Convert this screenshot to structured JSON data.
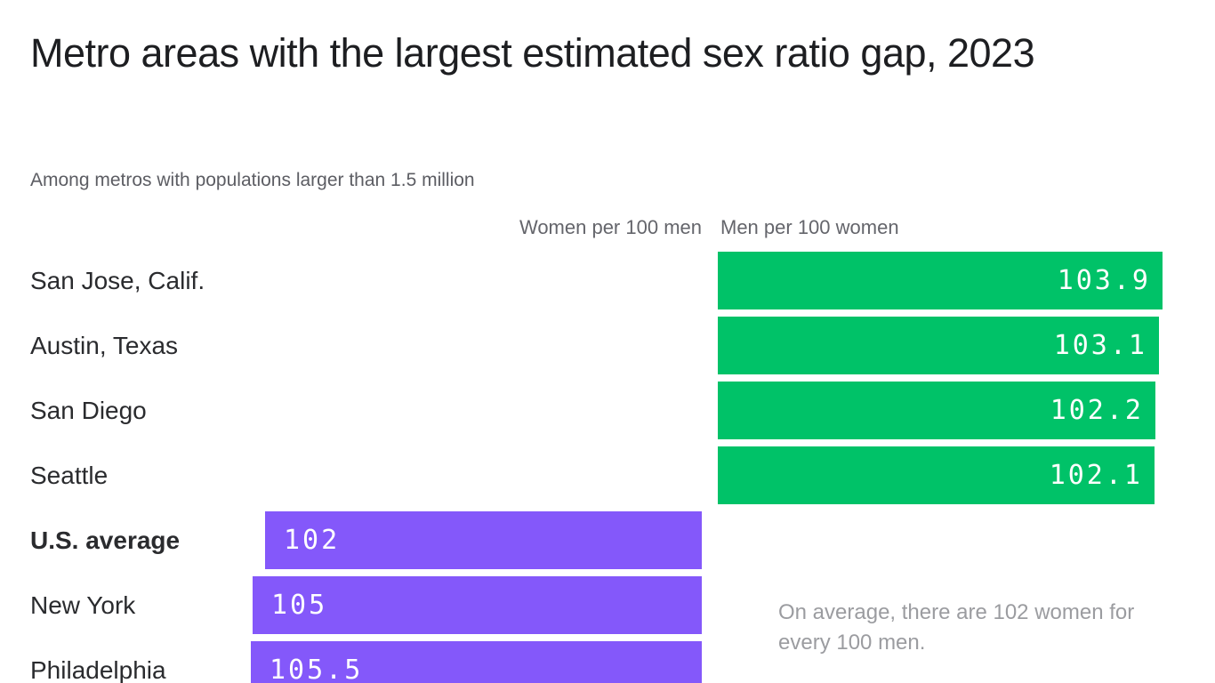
{
  "header": {
    "title": "Metro areas with the largest estimated sex ratio gap, 2023",
    "subtitle": "Among metros with populations larger than 1.5 million"
  },
  "columns": {
    "women_header": "Women per 100 men",
    "men_header": "Men per 100 women"
  },
  "annotation": {
    "text": "On average, there are 102 women for every 100 men."
  },
  "colors": {
    "men_bar_green": "#00C268",
    "women_bar_purple": "#8458FA",
    "value_text_white": "#FFFFFF",
    "title_text": "#1D1E21",
    "muted_text": "#64656B",
    "annotation_text": "#9B9CA0"
  },
  "chart_data": {
    "type": "bar",
    "orientation": "horizontal",
    "title": "Metro areas with the largest estimated sex ratio gap, 2023",
    "subtitle": "Among metros with populations larger than 1.5 million",
    "note": "On average, there are 102 women for every 100 men.",
    "axis": {
      "min": 0,
      "bar_length_proportional_from": 0
    },
    "legend_position": "column headers above bars",
    "grid": false,
    "series": [
      {
        "name": "Men per 100 women",
        "color": "#00C268",
        "side": "right"
      },
      {
        "name": "Women per 100 men",
        "color": "#8458FA",
        "side": "left"
      }
    ],
    "rows": [
      {
        "label": "San Jose, Calif.",
        "series": "Men per 100 women",
        "side": "men",
        "value": 103.9,
        "display": "103.9",
        "bold": false
      },
      {
        "label": "Austin, Texas",
        "series": "Men per 100 women",
        "side": "men",
        "value": 103.1,
        "display": "103.1",
        "bold": false
      },
      {
        "label": "San Diego",
        "series": "Men per 100 women",
        "side": "men",
        "value": 102.2,
        "display": "102.2",
        "bold": false
      },
      {
        "label": "Seattle",
        "series": "Men per 100 women",
        "side": "men",
        "value": 102.1,
        "display": "102.1",
        "bold": false
      },
      {
        "label": "U.S. average",
        "series": "Women per 100 men",
        "side": "women",
        "value": 102,
        "display": "102",
        "bold": true
      },
      {
        "label": "New York",
        "series": "Women per 100 men",
        "side": "women",
        "value": 105,
        "display": "105",
        "bold": false
      },
      {
        "label": "Philadelphia",
        "series": "Women per 100 men",
        "side": "women",
        "value": 105.5,
        "display": "105.5",
        "bold": false
      }
    ]
  }
}
